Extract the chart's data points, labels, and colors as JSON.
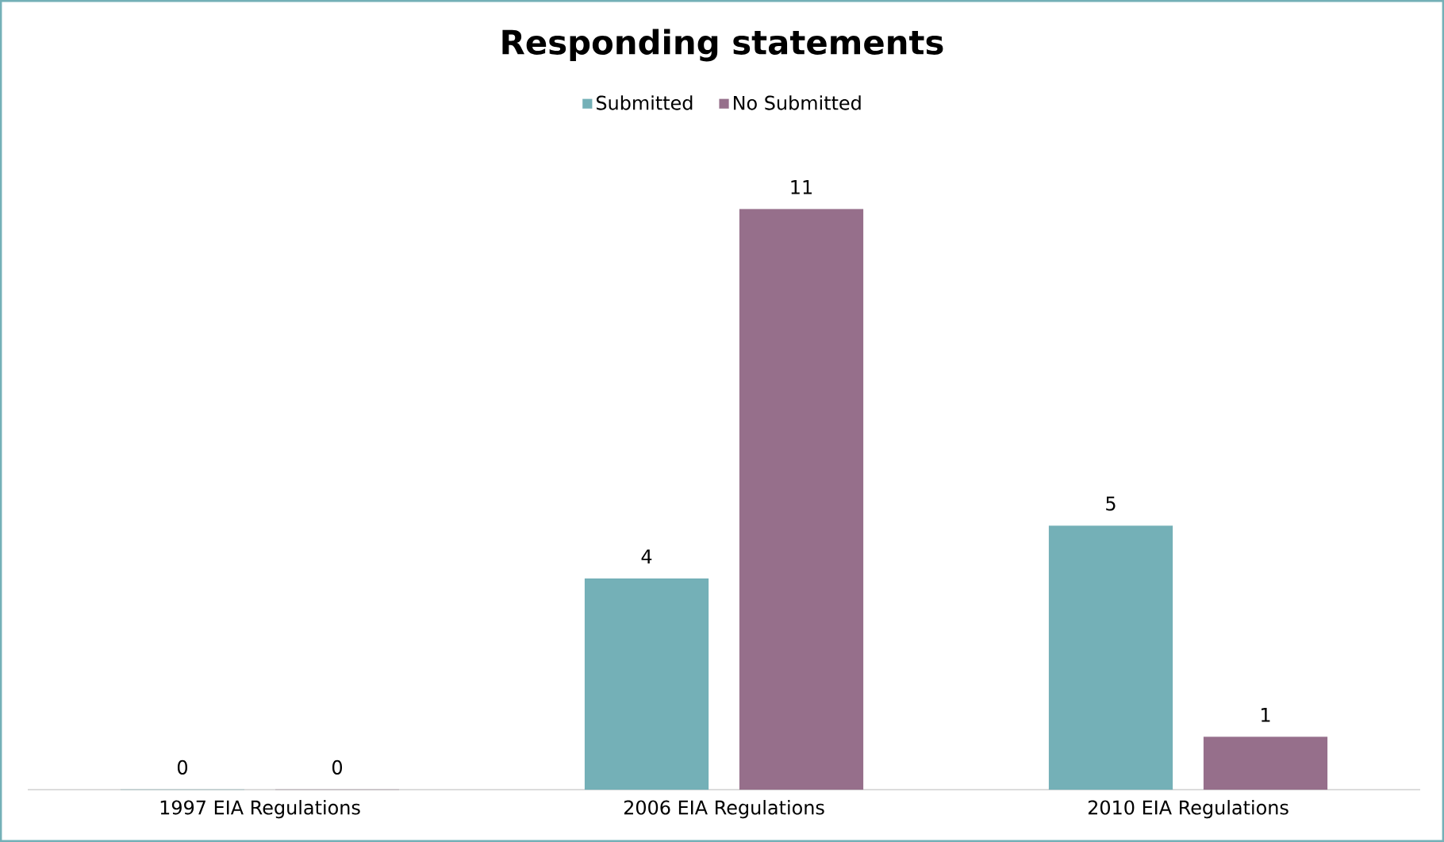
{
  "chart_data": {
    "type": "bar",
    "title": "Responding statements",
    "categories": [
      "1997 EIA Regulations",
      "2006 EIA Regulations",
      "2010 EIA Regulations"
    ],
    "series": [
      {
        "name": "Submitted",
        "color": "#74b0b7",
        "values": [
          0,
          4,
          5
        ]
      },
      {
        "name": "No Submitted",
        "color": "#966f8b",
        "values": [
          0,
          11,
          1
        ]
      }
    ],
    "data_labels": true,
    "legend": "top"
  }
}
